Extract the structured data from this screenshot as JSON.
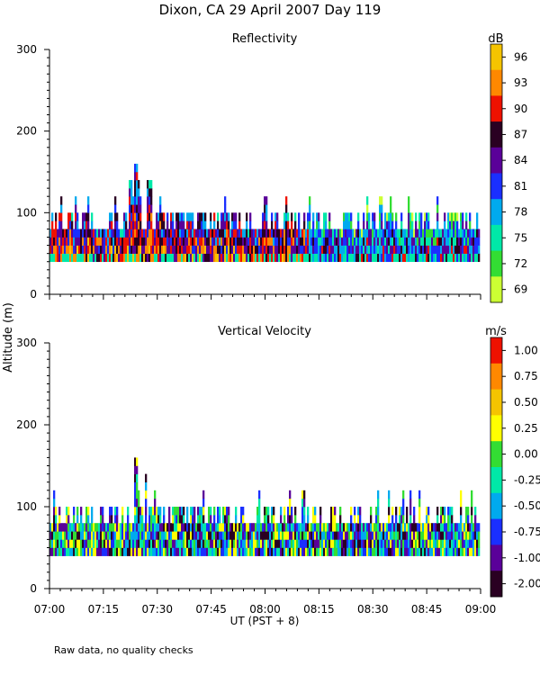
{
  "title": "Dixon, CA 29 April 2007  Day 119",
  "ylabel": "Altitude  (m)",
  "xlabel": "UT  (PST + 8)",
  "footnote": "Raw data, no quality checks",
  "x_ticks": [
    "07:00",
    "07:15",
    "07:30",
    "07:45",
    "08:00",
    "08:15",
    "08:30",
    "08:45",
    "09:00"
  ],
  "chart_data": [
    {
      "type": "heatmap",
      "title": "Reflectivity",
      "ylabel": "Altitude (m)",
      "xlabel": "UT (PST + 8)",
      "xlim": [
        "07:00",
        "09:00"
      ],
      "ylim": [
        0,
        300
      ],
      "y_ticks": [
        0,
        100,
        200,
        300
      ],
      "y_tick_labels": [
        "0",
        "100",
        "200",
        "300"
      ],
      "colorbar": {
        "unit": "dB",
        "labels": [
          "96",
          "93",
          "90",
          "87",
          "84",
          "81",
          "78",
          "75",
          "72",
          "69"
        ],
        "colors": [
          "#f5c400",
          "#ff8800",
          "#ee1100",
          "#2a0022",
          "#5a0099",
          "#1a2fff",
          "#00aaee",
          "#00e8a8",
          "#33dd33",
          "#ccff33"
        ]
      },
      "gate_bottom_m": 40,
      "typical_top_m": [
        80,
        100
      ],
      "max_top_m": 160
    },
    {
      "type": "heatmap",
      "title": "Vertical Velocity",
      "ylabel": "Altitude (m)",
      "xlabel": "UT (PST + 8)",
      "xlim": [
        "07:00",
        "09:00"
      ],
      "ylim": [
        0,
        300
      ],
      "y_ticks": [
        0,
        100,
        200,
        300
      ],
      "y_tick_labels": [
        "0",
        "100",
        "200",
        "300"
      ],
      "colorbar": {
        "unit": "m/s",
        "labels": [
          "1.00",
          "0.75",
          "0.50",
          "0.25",
          "0.00",
          "-0.25",
          "-0.50",
          "-0.75",
          "-1.00",
          "-2.00"
        ],
        "colors": [
          "#ee1100",
          "#ff8800",
          "#f5c400",
          "#ffff00",
          "#33dd33",
          "#00e8a8",
          "#00aaee",
          "#1a2fff",
          "#5a0099",
          "#2a0022"
        ]
      },
      "gate_bottom_m": 40,
      "typical_top_m": [
        80,
        100
      ],
      "max_top_m": 160
    }
  ]
}
